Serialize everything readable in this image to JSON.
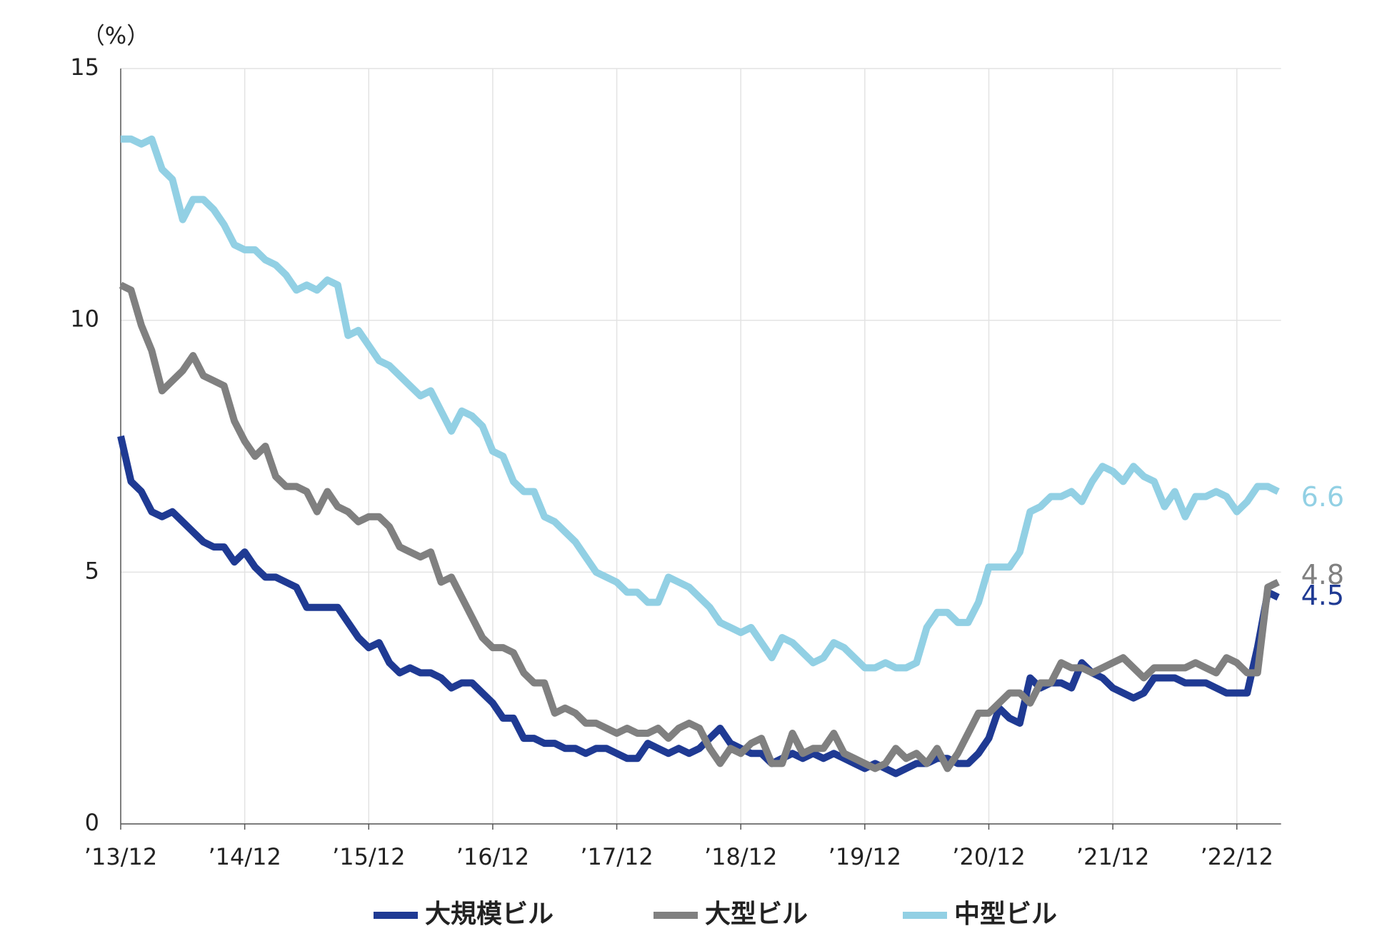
{
  "chart_data": {
    "type": "line",
    "y_label": "（%）",
    "categories": [
      "’13/12",
      null,
      null,
      null,
      null,
      null,
      null,
      null,
      null,
      null,
      null,
      null,
      "’14/12",
      null,
      null,
      null,
      null,
      null,
      null,
      null,
      null,
      null,
      null,
      null,
      "’15/12",
      null,
      null,
      null,
      null,
      null,
      null,
      null,
      null,
      null,
      null,
      null,
      "’16/12",
      null,
      null,
      null,
      null,
      null,
      null,
      null,
      null,
      null,
      null,
      null,
      "’17/12",
      null,
      null,
      null,
      null,
      null,
      null,
      null,
      null,
      null,
      null,
      null,
      "’18/12",
      null,
      null,
      null,
      null,
      null,
      null,
      null,
      null,
      null,
      null,
      null,
      "’19/12",
      null,
      null,
      null,
      null,
      null,
      null,
      null,
      null,
      null,
      null,
      null,
      "’20/12",
      null,
      null,
      null,
      null,
      null,
      null,
      null,
      null,
      null,
      null,
      null,
      "’21/12",
      null,
      null,
      null,
      null,
      null,
      null,
      null,
      null,
      null,
      null,
      null,
      "’22/12",
      null,
      null,
      null,
      null
    ],
    "series": [
      {
        "name": "大規模ビル",
        "color": "#1f3a93",
        "values": [
          7.7,
          6.8,
          6.6,
          6.2,
          6.1,
          6.2,
          6.0,
          5.8,
          5.6,
          5.5,
          5.5,
          5.2,
          5.4,
          5.1,
          4.9,
          4.9,
          4.8,
          4.7,
          4.3,
          4.3,
          4.3,
          4.3,
          4.0,
          3.7,
          3.5,
          3.6,
          3.2,
          3.0,
          3.1,
          3.0,
          3.0,
          2.9,
          2.7,
          2.8,
          2.8,
          2.6,
          2.4,
          2.1,
          2.1,
          1.7,
          1.7,
          1.6,
          1.6,
          1.5,
          1.5,
          1.4,
          1.5,
          1.5,
          1.4,
          1.3,
          1.3,
          1.6,
          1.5,
          1.4,
          1.5,
          1.4,
          1.5,
          1.7,
          1.9,
          1.6,
          1.5,
          1.4,
          1.4,
          1.2,
          1.3,
          1.4,
          1.3,
          1.4,
          1.3,
          1.4,
          1.3,
          1.2,
          1.1,
          1.2,
          1.1,
          1.0,
          1.1,
          1.2,
          1.2,
          1.3,
          1.3,
          1.2,
          1.2,
          1.4,
          1.7,
          2.3,
          2.1,
          2.0,
          2.9,
          2.7,
          2.8,
          2.8,
          2.7,
          3.2,
          3.0,
          2.9,
          2.7,
          2.6,
          2.5,
          2.6,
          2.9,
          2.9,
          2.9,
          2.8,
          2.8,
          2.8,
          2.7,
          2.6,
          2.6,
          2.6,
          3.5,
          4.6,
          4.5
        ]
      },
      {
        "name": "大型ビル",
        "color": "#808080",
        "values": [
          10.7,
          10.6,
          9.9,
          9.4,
          8.6,
          8.8,
          9.0,
          9.3,
          8.9,
          8.8,
          8.7,
          8.0,
          7.6,
          7.3,
          7.5,
          6.9,
          6.7,
          6.7,
          6.6,
          6.2,
          6.6,
          6.3,
          6.2,
          6.0,
          6.1,
          6.1,
          5.9,
          5.5,
          5.4,
          5.3,
          5.4,
          4.8,
          4.9,
          4.5,
          4.1,
          3.7,
          3.5,
          3.5,
          3.4,
          3.0,
          2.8,
          2.8,
          2.2,
          2.3,
          2.2,
          2.0,
          2.0,
          1.9,
          1.8,
          1.9,
          1.8,
          1.8,
          1.9,
          1.7,
          1.9,
          2.0,
          1.9,
          1.5,
          1.2,
          1.5,
          1.4,
          1.6,
          1.7,
          1.2,
          1.2,
          1.8,
          1.4,
          1.5,
          1.5,
          1.8,
          1.4,
          1.3,
          1.2,
          1.1,
          1.2,
          1.5,
          1.3,
          1.4,
          1.2,
          1.5,
          1.1,
          1.4,
          1.8,
          2.2,
          2.2,
          2.4,
          2.6,
          2.6,
          2.4,
          2.8,
          2.8,
          3.2,
          3.1,
          3.1,
          3.0,
          3.1,
          3.2,
          3.3,
          3.1,
          2.9,
          3.1,
          3.1,
          3.1,
          3.1,
          3.2,
          3.1,
          3.0,
          3.3,
          3.2,
          3.0,
          3.0,
          4.7,
          4.8
        ]
      },
      {
        "name": "中型ビル",
        "color": "#92d0e4",
        "values": [
          13.6,
          13.6,
          13.5,
          13.6,
          13.0,
          12.8,
          12.0,
          12.4,
          12.4,
          12.2,
          11.9,
          11.5,
          11.4,
          11.4,
          11.2,
          11.1,
          10.9,
          10.6,
          10.7,
          10.6,
          10.8,
          10.7,
          9.7,
          9.8,
          9.5,
          9.2,
          9.1,
          8.9,
          8.7,
          8.5,
          8.6,
          8.2,
          7.8,
          8.2,
          8.1,
          7.9,
          7.4,
          7.3,
          6.8,
          6.6,
          6.6,
          6.1,
          6.0,
          5.8,
          5.6,
          5.3,
          5.0,
          4.9,
          4.8,
          4.6,
          4.6,
          4.4,
          4.4,
          4.9,
          4.8,
          4.7,
          4.5,
          4.3,
          4.0,
          3.9,
          3.8,
          3.9,
          3.6,
          3.3,
          3.7,
          3.6,
          3.4,
          3.2,
          3.3,
          3.6,
          3.5,
          3.3,
          3.1,
          3.1,
          3.2,
          3.1,
          3.1,
          3.2,
          3.9,
          4.2,
          4.2,
          4.0,
          4.0,
          4.4,
          5.1,
          5.1,
          5.1,
          5.4,
          6.2,
          6.3,
          6.5,
          6.5,
          6.6,
          6.4,
          6.8,
          7.1,
          7.0,
          6.8,
          7.1,
          6.9,
          6.8,
          6.3,
          6.6,
          6.1,
          6.5,
          6.5,
          6.6,
          6.5,
          6.2,
          6.4,
          6.7,
          6.7,
          6.6
        ]
      }
    ],
    "ylim": [
      0,
      15
    ],
    "yticks": [
      0,
      5,
      10,
      15
    ],
    "grid": true,
    "legend": "bottom"
  }
}
